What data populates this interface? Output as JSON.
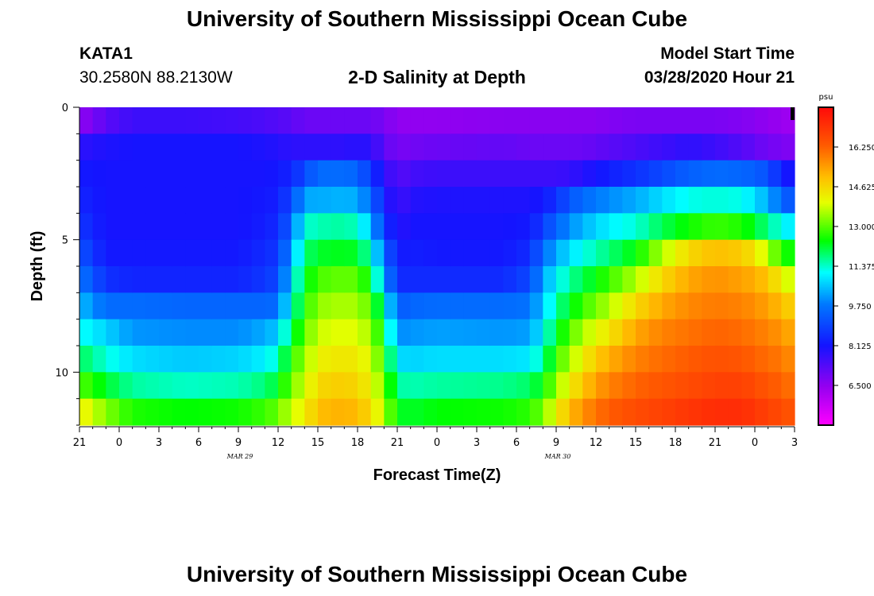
{
  "page": {
    "title_top": "University of Southern Mississippi Ocean Cube",
    "title_bottom": "University of Southern Mississippi Ocean Cube",
    "station": "KATA1",
    "location": "30.2580N 88.2130W",
    "subtitle": "2-D Salinity at Depth",
    "model_start_label": "Model Start Time",
    "model_start_value": "03/28/2020 Hour 21"
  },
  "chart_data": {
    "type": "heatmap",
    "title": "2-D Salinity at Depth",
    "xlabel": "Forecast Time(Z)",
    "ylabel": "Depth (ft)",
    "x_ticks": [
      "21",
      "0",
      "3",
      "6",
      "9",
      "12",
      "15",
      "18",
      "21",
      "0",
      "3",
      "6",
      "9",
      "12",
      "15",
      "18",
      "21",
      "0",
      "3"
    ],
    "x_hours": [
      0,
      3,
      6,
      9,
      12,
      15,
      18,
      21,
      24,
      27,
      30,
      33,
      36,
      39,
      42,
      45,
      48,
      51,
      54
    ],
    "date_labels": [
      {
        "label": "MAR 29",
        "hour": 15
      },
      {
        "label": "MAR 30",
        "hour": 39
      }
    ],
    "y_ticks": [
      0,
      5,
      10
    ],
    "ylim": [
      0,
      12
    ],
    "depth_levels_ft": [
      0.5,
      1.5,
      2.5,
      3.5,
      4.5,
      5.5,
      6.5,
      7.5,
      8.5,
      9.5,
      10.5,
      11.5
    ],
    "colorbar": {
      "unit": "psu",
      "min": 4.875,
      "max": 17.875,
      "tick_values": [
        16.25,
        14.625,
        13.0,
        11.375,
        9.75,
        8.125,
        6.5
      ],
      "tick_labels": [
        "16.250",
        "14.625",
        "13.000",
        "11.375",
        "9.750",
        "8.125",
        "6.500"
      ]
    },
    "profiles": [
      {
        "hour": 0,
        "values": [
          6.5,
          7.8,
          8.2,
          8.4,
          8.7,
          9.2,
          9.8,
          10.5,
          11.2,
          12.0,
          13.0,
          14.3
        ]
      },
      {
        "hour": 2,
        "values": [
          7.2,
          8.0,
          8.1,
          8.1,
          8.1,
          8.2,
          8.6,
          9.6,
          10.7,
          11.3,
          12.2,
          13.3
        ]
      },
      {
        "hour": 4,
        "values": [
          7.6,
          8.1,
          8.1,
          8.1,
          8.1,
          8.2,
          8.4,
          9.6,
          10.1,
          10.8,
          11.6,
          12.6
        ]
      },
      {
        "hour": 8,
        "values": [
          7.6,
          8.1,
          8.1,
          8.1,
          8.1,
          8.2,
          8.4,
          9.5,
          10.0,
          10.6,
          11.4,
          12.4
        ]
      },
      {
        "hour": 12,
        "values": [
          7.5,
          8.1,
          8.1,
          8.1,
          8.1,
          8.2,
          8.4,
          9.5,
          10.0,
          10.7,
          11.5,
          12.5
        ]
      },
      {
        "hour": 14,
        "values": [
          7.4,
          8.0,
          8.1,
          8.2,
          8.3,
          8.5,
          8.7,
          9.5,
          10.3,
          11.0,
          11.8,
          12.8
        ]
      },
      {
        "hour": 15,
        "values": [
          7.3,
          7.9,
          8.2,
          8.3,
          8.5,
          8.7,
          9.0,
          9.6,
          10.6,
          11.4,
          12.2,
          13.1
        ]
      },
      {
        "hour": 16,
        "values": [
          7.2,
          7.8,
          8.4,
          9.0,
          9.5,
          10.2,
          10.8,
          11.3,
          12.0,
          12.7,
          13.2,
          13.8
        ]
      },
      {
        "hour": 17,
        "values": [
          7.0,
          7.8,
          9.0,
          10.3,
          11.3,
          11.8,
          12.2,
          12.6,
          13.0,
          13.4,
          13.8,
          14.2
        ]
      },
      {
        "hour": 18,
        "values": [
          7.0,
          7.8,
          9.6,
          10.3,
          11.5,
          12.2,
          12.9,
          13.4,
          13.8,
          14.2,
          14.6,
          15.0
        ]
      },
      {
        "hour": 20,
        "values": [
          7.0,
          7.8,
          9.6,
          10.4,
          11.6,
          12.3,
          13.1,
          13.6,
          14.0,
          14.4,
          14.8,
          15.2
        ]
      },
      {
        "hour": 21,
        "values": [
          7.0,
          7.9,
          9.5,
          10.3,
          11.4,
          12.2,
          13.0,
          13.5,
          13.9,
          14.3,
          14.6,
          15.0
        ]
      },
      {
        "hour": 22,
        "values": [
          7.0,
          7.8,
          8.7,
          9.6,
          10.5,
          11.4,
          12.3,
          13.0,
          13.5,
          13.9,
          14.2,
          14.6
        ]
      },
      {
        "hour": 23,
        "values": [
          6.8,
          7.2,
          7.9,
          8.3,
          8.8,
          9.6,
          10.3,
          11.4,
          12.2,
          12.7,
          13.2,
          13.6
        ]
      },
      {
        "hour": 24,
        "values": [
          6.5,
          6.8,
          7.2,
          7.5,
          7.8,
          8.2,
          8.5,
          9.3,
          10.0,
          10.8,
          11.6,
          12.3
        ]
      },
      {
        "hour": 25,
        "values": [
          6.5,
          6.9,
          7.5,
          7.9,
          8.1,
          8.3,
          8.5,
          9.5,
          10.1,
          10.7,
          11.5,
          12.2
        ]
      },
      {
        "hour": 27,
        "values": [
          6.5,
          7.0,
          7.6,
          8.0,
          8.1,
          8.2,
          8.5,
          9.6,
          10.2,
          10.8,
          11.6,
          12.4
        ]
      },
      {
        "hour": 32,
        "values": [
          6.6,
          7.1,
          7.6,
          8.0,
          8.1,
          8.2,
          8.5,
          9.6,
          10.1,
          10.8,
          11.7,
          12.5
        ]
      },
      {
        "hour": 34,
        "values": [
          6.6,
          7.0,
          7.6,
          8.0,
          8.2,
          8.5,
          9.0,
          9.7,
          10.2,
          10.9,
          11.9,
          12.7
        ]
      },
      {
        "hour": 35,
        "values": [
          6.6,
          7.0,
          7.6,
          8.2,
          8.8,
          9.6,
          10.2,
          10.6,
          11.0,
          11.6,
          12.4,
          13.2
        ]
      },
      {
        "hour": 36,
        "values": [
          6.6,
          7.0,
          7.6,
          8.6,
          9.5,
          10.3,
          11.0,
          11.6,
          12.2,
          12.8,
          13.4,
          14.2
        ]
      },
      {
        "hour": 37,
        "values": [
          6.6,
          7.0,
          7.7,
          9.2,
          10.0,
          10.8,
          11.6,
          12.2,
          12.9,
          13.5,
          14.2,
          15.0
        ]
      },
      {
        "hour": 38,
        "values": [
          6.6,
          7.0,
          7.9,
          9.6,
          10.4,
          11.2,
          12.0,
          12.8,
          13.6,
          14.2,
          14.9,
          15.6
        ]
      },
      {
        "hour": 39,
        "values": [
          6.6,
          7.1,
          8.1,
          9.8,
          10.7,
          11.5,
          12.4,
          13.2,
          14.0,
          14.8,
          15.4,
          16.0
        ]
      },
      {
        "hour": 40,
        "values": [
          6.7,
          7.2,
          8.3,
          10.0,
          11.0,
          11.8,
          12.8,
          13.6,
          14.4,
          15.2,
          15.8,
          16.3
        ]
      },
      {
        "hour": 42,
        "values": [
          6.8,
          7.4,
          8.6,
          10.3,
          11.3,
          12.4,
          13.6,
          14.6,
          15.3,
          15.8,
          16.2,
          16.6
        ]
      },
      {
        "hour": 44,
        "values": [
          6.8,
          7.6,
          9.0,
          10.8,
          12.0,
          13.6,
          14.6,
          15.3,
          15.8,
          16.1,
          16.4,
          16.8
        ]
      },
      {
        "hour": 46,
        "values": [
          6.8,
          7.8,
          9.4,
          11.2,
          12.5,
          14.6,
          15.3,
          15.7,
          16.0,
          16.3,
          16.6,
          17.0
        ]
      },
      {
        "hour": 48,
        "values": [
          6.8,
          7.6,
          9.6,
          11.3,
          12.8,
          15.0,
          15.6,
          15.9,
          16.2,
          16.5,
          16.8,
          17.2
        ]
      },
      {
        "hour": 50,
        "values": [
          6.7,
          7.3,
          9.5,
          11.2,
          12.6,
          14.8,
          15.4,
          15.8,
          16.1,
          16.4,
          16.8,
          17.2
        ]
      },
      {
        "hour": 51,
        "values": [
          6.6,
          7.1,
          9.4,
          10.8,
          12.2,
          14.4,
          15.2,
          15.6,
          15.9,
          16.2,
          16.6,
          17.0
        ]
      },
      {
        "hour": 52,
        "values": [
          6.5,
          6.9,
          9.1,
          10.3,
          11.7,
          13.6,
          14.9,
          15.4,
          15.8,
          16.1,
          16.4,
          16.8
        ]
      },
      {
        "hour": 53,
        "values": [
          6.4,
          6.8,
          8.4,
          9.6,
          11.2,
          12.7,
          14.2,
          15.0,
          15.5,
          15.9,
          16.2,
          16.6
        ]
      },
      {
        "hour": 54,
        "values": [
          6.3,
          6.7,
          7.9,
          9.0,
          10.8,
          12.3,
          13.6,
          14.6,
          15.2,
          15.6,
          16.0,
          16.4
        ]
      }
    ],
    "time_step_hours": 1
  }
}
